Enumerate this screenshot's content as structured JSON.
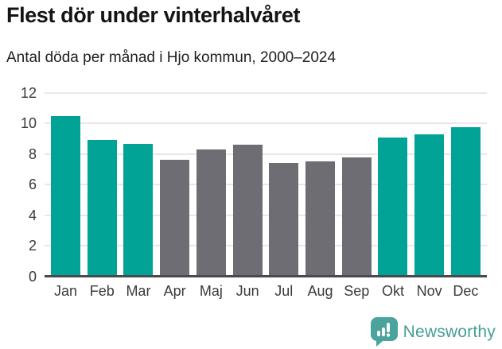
{
  "header": {
    "title": "Flest dör under vinterhalvåret",
    "subtitle": "Antal döda per månad i Hjo kommun, 2000–2024"
  },
  "chart_data": {
    "type": "bar",
    "title": "Flest dör under vinterhalvåret",
    "subtitle": "Antal döda per månad i Hjo kommun, 2000–2024",
    "categories": [
      "Jan",
      "Feb",
      "Mar",
      "Apr",
      "Maj",
      "Jun",
      "Jul",
      "Aug",
      "Sep",
      "Okt",
      "Nov",
      "Dec"
    ],
    "values": [
      10.5,
      8.95,
      8.7,
      7.65,
      8.3,
      8.6,
      7.45,
      7.55,
      7.8,
      9.1,
      9.3,
      9.75
    ],
    "bar_color_keys": [
      "teal",
      "teal",
      "teal",
      "gray",
      "gray",
      "gray",
      "gray",
      "gray",
      "gray",
      "teal",
      "teal",
      "teal"
    ],
    "colors": {
      "teal": "#00a396",
      "gray": "#6d6d73"
    },
    "xlabel": "",
    "ylabel": "",
    "ylim": [
      0,
      12
    ],
    "yticks": [
      0,
      2,
      4,
      6,
      8,
      10,
      12
    ],
    "grid": true,
    "legend": false,
    "gridline_color": "#e7e7ea",
    "axis_line_color": "#4a4a4e"
  },
  "footer": {
    "brand": "Newsworthy",
    "brand_color": "#459e97",
    "logo_icon": "newsworthy-chart-bubble-icon"
  }
}
